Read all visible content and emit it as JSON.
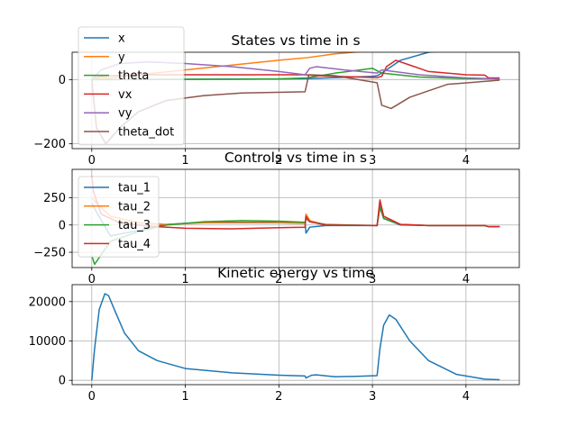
{
  "colors": {
    "c0": "#1f77b4",
    "c1": "#ff7f0e",
    "c2": "#2ca02c",
    "c3": "#d62728",
    "c4": "#9467bd",
    "c5": "#8c564b",
    "grid": "#b0b0b0",
    "axis": "#000000"
  },
  "chart_data": [
    {
      "type": "line",
      "title": "States vs time in s",
      "xlabel": "",
      "ylabel": "",
      "xlim": [
        -0.21,
        4.57
      ],
      "ylim": [
        -215,
        85
      ],
      "xticks": [
        0,
        1,
        2,
        3,
        4
      ],
      "xtick_labels": [
        "0",
        "1",
        "2",
        "3",
        "4"
      ],
      "yticks": [
        0,
        -200
      ],
      "ytick_labels": [
        "0",
        "−200"
      ],
      "grid": true,
      "legend": "upper-left",
      "series": [
        {
          "name": "x",
          "color": "#1f77b4",
          "x": [
            0,
            0.2,
            1,
            2,
            2.3,
            2.5,
            3.0,
            3.05,
            3.1,
            3.3,
            3.6,
            4.0,
            4.36
          ],
          "y": [
            0,
            0,
            1,
            2,
            3,
            5,
            10,
            12,
            20,
            60,
            85,
            95,
            98
          ]
        },
        {
          "name": "y",
          "color": "#ff7f0e",
          "x": [
            0,
            0.2,
            0.5,
            1,
            1.5,
            2,
            2.3,
            2.6,
            3.0,
            3.5,
            4.0,
            4.36
          ],
          "y": [
            0,
            5,
            15,
            30,
            45,
            60,
            68,
            80,
            90,
            97,
            100,
            100
          ]
        },
        {
          "name": "theta",
          "color": "#2ca02c",
          "x": [
            0,
            0.5,
            1,
            1.5,
            2,
            2.3,
            2.6,
            3.0,
            3.1,
            3.5,
            4.0,
            4.36
          ],
          "y": [
            0,
            0,
            1,
            1,
            2,
            5,
            20,
            35,
            20,
            8,
            3,
            2
          ]
        },
        {
          "name": "vx",
          "color": "#d62728",
          "x": [
            0,
            0.2,
            0.5,
            1,
            2,
            2.28,
            2.4,
            3.05,
            3.1,
            3.15,
            3.25,
            3.4,
            3.6,
            4.0,
            4.2,
            4.24,
            4.36
          ],
          "y": [
            5,
            12,
            15,
            15,
            15,
            15,
            12,
            6,
            10,
            40,
            60,
            45,
            25,
            15,
            14,
            5,
            5
          ]
        },
        {
          "name": "vy",
          "color": "#9467bd",
          "x": [
            0,
            0.1,
            0.3,
            0.6,
            1,
            1.5,
            2,
            2.28,
            2.33,
            2.4,
            2.7,
            3.05,
            3.1,
            3.5,
            4.0,
            4.36
          ],
          "y": [
            0,
            30,
            50,
            55,
            50,
            40,
            25,
            15,
            35,
            40,
            30,
            20,
            30,
            15,
            5,
            2
          ]
        },
        {
          "name": "theta_dot",
          "color": "#8c564b",
          "x": [
            0,
            0.05,
            0.15,
            0.3,
            0.5,
            0.8,
            1.2,
            1.6,
            2.28,
            2.32,
            2.6,
            3.05,
            3.1,
            3.2,
            3.4,
            3.8,
            4.36
          ],
          "y": [
            0,
            -150,
            -200,
            -150,
            -100,
            -65,
            -50,
            -42,
            -38,
            15,
            12,
            -10,
            -80,
            -90,
            -55,
            -15,
            -2
          ]
        }
      ]
    },
    {
      "type": "line",
      "title": "Controls vs time in s",
      "xlabel": "",
      "ylabel": "",
      "xlim": [
        -0.21,
        4.57
      ],
      "ylim": [
        -390,
        510
      ],
      "xticks": [
        0,
        1,
        2,
        3,
        4
      ],
      "xtick_labels": [
        "0",
        "1",
        "2",
        "3",
        "4"
      ],
      "yticks": [
        250,
        0,
        -250
      ],
      "ytick_labels": [
        "250",
        "0",
        "−250"
      ],
      "grid": true,
      "legend": "upper-left",
      "series": [
        {
          "name": "tau_1",
          "color": "#1f77b4",
          "x": [
            0,
            0.05,
            0.2,
            0.5,
            0.8,
            1.2,
            2,
            2.28,
            2.29,
            2.33,
            2.5,
            3.05,
            3.08,
            3.12,
            3.3,
            3.6,
            4.0,
            4.2,
            4.24,
            4.36
          ],
          "y": [
            200,
            120,
            -100,
            -50,
            5,
            25,
            25,
            20,
            -75,
            -20,
            -5,
            -5,
            180,
            60,
            0,
            -5,
            -5,
            -5,
            -15,
            -15
          ]
        },
        {
          "name": "tau_2",
          "color": "#ff7f0e",
          "x": [
            0,
            0.05,
            0.2,
            0.5,
            0.8,
            1.2,
            2,
            2.28,
            2.29,
            2.33,
            2.5,
            3.05,
            3.08,
            3.12,
            3.3,
            3.6,
            4.0,
            4.2,
            4.24,
            4.36
          ],
          "y": [
            250,
            200,
            80,
            20,
            5,
            20,
            20,
            15,
            100,
            40,
            0,
            -5,
            220,
            80,
            5,
            -5,
            -5,
            -5,
            -15,
            -15
          ]
        },
        {
          "name": "tau_3",
          "color": "#2ca02c",
          "x": [
            0,
            0.03,
            0.2,
            0.5,
            0.8,
            1.2,
            1.6,
            2,
            2.28,
            2.29,
            2.33,
            2.5,
            3.05,
            3.08,
            3.12,
            3.3,
            3.6,
            4.0,
            4.2,
            4.24,
            4.36
          ],
          "y": [
            -280,
            -360,
            -150,
            -60,
            0,
            30,
            40,
            35,
            25,
            60,
            30,
            5,
            -5,
            160,
            60,
            5,
            -5,
            -5,
            -5,
            -15,
            -15
          ]
        },
        {
          "name": "tau_4",
          "color": "#d62728",
          "x": [
            0,
            0.02,
            0.1,
            0.3,
            0.6,
            1,
            1.5,
            2,
            2.28,
            2.29,
            2.33,
            2.5,
            3.05,
            3.08,
            3.12,
            3.3,
            3.6,
            4.0,
            4.2,
            4.24,
            4.36
          ],
          "y": [
            450,
            300,
            100,
            20,
            -10,
            -30,
            -35,
            -25,
            -20,
            80,
            30,
            0,
            -5,
            230,
            80,
            5,
            -5,
            -5,
            -5,
            -15,
            -15
          ]
        }
      ]
    },
    {
      "type": "line",
      "title": "Kinetic energy vs time",
      "xlabel": "",
      "ylabel": "",
      "xlim": [
        -0.21,
        4.57
      ],
      "ylim": [
        -1100,
        24300
      ],
      "xticks": [
        0,
        1,
        2,
        3,
        4
      ],
      "xtick_labels": [
        "0",
        "1",
        "2",
        "3",
        "4"
      ],
      "yticks": [
        0,
        10000,
        20000
      ],
      "ytick_labels": [
        "0",
        "10000",
        "20000"
      ],
      "grid": true,
      "series": [
        {
          "name": "",
          "color": "#1f77b4",
          "x": [
            0,
            0.03,
            0.08,
            0.14,
            0.18,
            0.25,
            0.35,
            0.5,
            0.7,
            1.0,
            1.5,
            2.0,
            2.28,
            2.29,
            2.35,
            2.4,
            2.6,
            2.8,
            3.05,
            3.08,
            3.12,
            3.18,
            3.25,
            3.4,
            3.6,
            3.9,
            4.2,
            4.36
          ],
          "y": [
            0,
            8000,
            18000,
            22000,
            21500,
            17500,
            12000,
            7500,
            5000,
            3000,
            1900,
            1300,
            1100,
            600,
            1300,
            1400,
            900,
            1000,
            1200,
            8000,
            14000,
            16600,
            15500,
            10000,
            5000,
            1500,
            300,
            150
          ]
        }
      ]
    }
  ]
}
